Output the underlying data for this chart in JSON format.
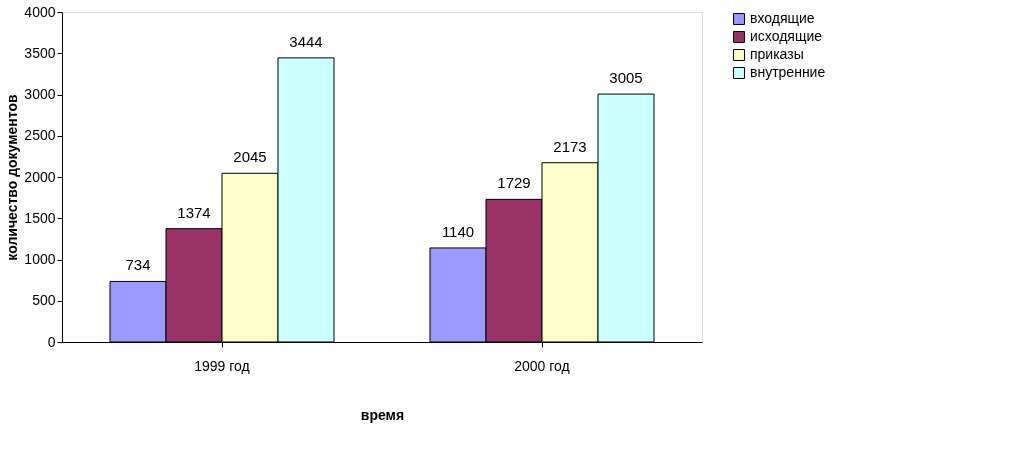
{
  "chart_data": {
    "type": "bar",
    "xlabel": "время",
    "ylabel": "количество документов",
    "categories": [
      "1999 год",
      "2000 год"
    ],
    "series": [
      {
        "name": "входящие",
        "color": "#9999ff",
        "values": [
          734,
          1140
        ]
      },
      {
        "name": "исходящие",
        "color": "#993366",
        "values": [
          1374,
          1729
        ]
      },
      {
        "name": "приказы",
        "color": "#ffffcc",
        "values": [
          2045,
          2173
        ]
      },
      {
        "name": "внутренние",
        "color": "#ccffff",
        "values": [
          3444,
          3005
        ]
      }
    ],
    "ylim": [
      0,
      4000
    ],
    "yticks": [
      0,
      500,
      1000,
      1500,
      2000,
      2500,
      3000,
      3500,
      4000
    ],
    "grid": false,
    "legend": "right",
    "data_labels": true
  }
}
